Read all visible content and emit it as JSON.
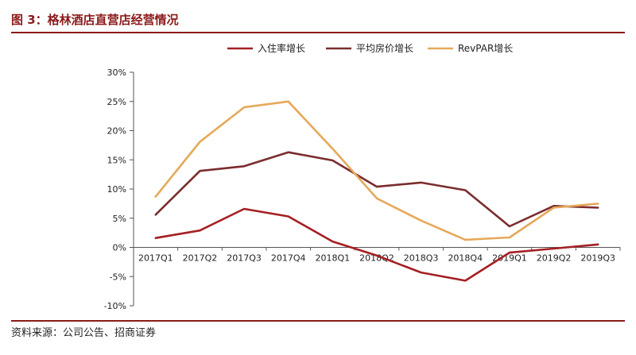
{
  "header": {
    "title": "图 3：格林酒店直营店经营情况"
  },
  "footer": {
    "source": "资料来源：公司公告、招商证券"
  },
  "chart_data": {
    "type": "line",
    "title": "",
    "xlabel": "",
    "ylabel": "",
    "categories": [
      "2017Q1",
      "2017Q2",
      "2017Q3",
      "2017Q4",
      "2018Q1",
      "2018Q2",
      "2018Q3",
      "2018Q4",
      "2019Q1",
      "2019Q2",
      "2019Q3"
    ],
    "y_ticks": [
      "30%",
      "25%",
      "20%",
      "15%",
      "10%",
      "5%",
      "0%",
      "-5%",
      "-10%"
    ],
    "y_tick_values": [
      30,
      25,
      20,
      15,
      10,
      5,
      0,
      -5,
      -10
    ],
    "ylim": [
      -10,
      30
    ],
    "grid": false,
    "legend_position": "top",
    "series": [
      {
        "name": "入住率增长",
        "color": "#a51f24",
        "values": [
          1.6,
          2.9,
          6.6,
          5.3,
          1.0,
          -1.4,
          -4.3,
          -5.7,
          -0.9,
          -0.2,
          0.5
        ]
      },
      {
        "name": "平均房价增长",
        "color": "#7b2d2d",
        "values": [
          5.6,
          13.1,
          13.9,
          16.3,
          14.9,
          10.4,
          11.1,
          9.8,
          3.6,
          7.1,
          6.8
        ]
      },
      {
        "name": "RevPAR增长",
        "color": "#e5a95b",
        "values": [
          8.7,
          18.1,
          24.0,
          25.0,
          16.9,
          8.4,
          4.6,
          1.3,
          1.7,
          6.8,
          7.5
        ]
      }
    ]
  }
}
